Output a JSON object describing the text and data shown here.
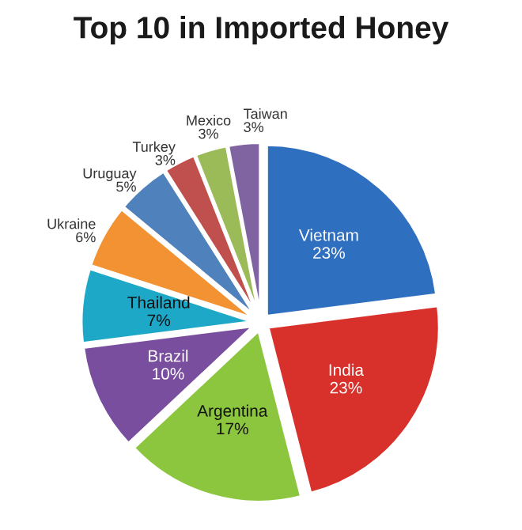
{
  "chart_data": {
    "type": "pie",
    "title": "Top 10 in Imported Honey",
    "categories": [
      "Vietnam",
      "India",
      "Argentina",
      "Brazil",
      "Thailand",
      "Ukraine",
      "Uruguay",
      "Turkey",
      "Mexico",
      "Taiwan"
    ],
    "values": [
      23,
      23,
      17,
      10,
      7,
      6,
      5,
      3,
      3,
      3
    ],
    "colors": [
      "#2f6fc0",
      "#d8302a",
      "#8cc63f",
      "#7a4e9f",
      "#1ea8c8",
      "#f29232",
      "#4f81bd",
      "#c0504d",
      "#9bbb59",
      "#8064a2"
    ],
    "value_labels": [
      "23%",
      "23%",
      "17%",
      "10%",
      "7%",
      "6%",
      "5%",
      "3%",
      "3%",
      "3%"
    ],
    "legend": false
  }
}
